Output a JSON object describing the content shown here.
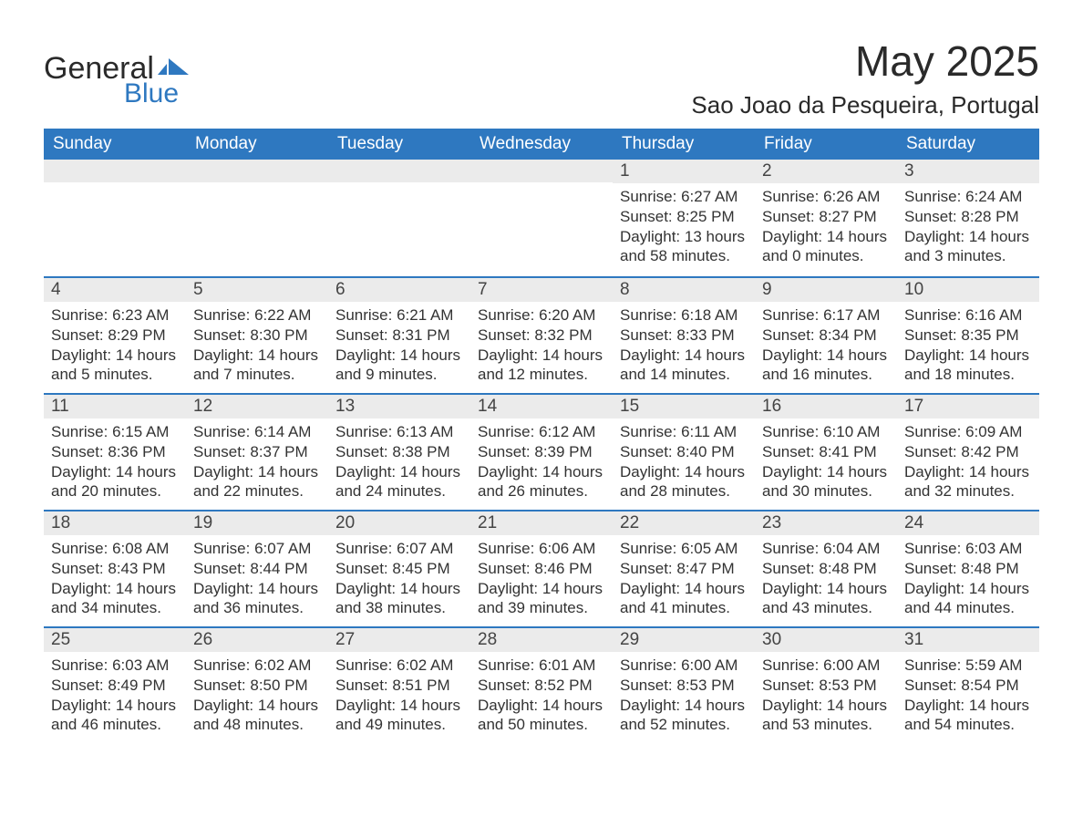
{
  "brand": {
    "word1": "General",
    "word2": "Blue",
    "accent_color": "#2e78c0"
  },
  "title": {
    "month_year": "May 2025",
    "location": "Sao Joao da Pesqueira, Portugal"
  },
  "colors": {
    "header_bg": "#2e78c0",
    "header_text": "#ffffff",
    "daynum_bg": "#ebebeb",
    "row_divider": "#2e78c0",
    "body_text": "#333333",
    "page_bg": "#ffffff"
  },
  "weekdays": [
    "Sunday",
    "Monday",
    "Tuesday",
    "Wednesday",
    "Thursday",
    "Friday",
    "Saturday"
  ],
  "weeks": [
    [
      null,
      null,
      null,
      null,
      {
        "n": "1",
        "sunrise": "Sunrise: 6:27 AM",
        "sunset": "Sunset: 8:25 PM",
        "day1": "Daylight: 13 hours",
        "day2": "and 58 minutes."
      },
      {
        "n": "2",
        "sunrise": "Sunrise: 6:26 AM",
        "sunset": "Sunset: 8:27 PM",
        "day1": "Daylight: 14 hours",
        "day2": "and 0 minutes."
      },
      {
        "n": "3",
        "sunrise": "Sunrise: 6:24 AM",
        "sunset": "Sunset: 8:28 PM",
        "day1": "Daylight: 14 hours",
        "day2": "and 3 minutes."
      }
    ],
    [
      {
        "n": "4",
        "sunrise": "Sunrise: 6:23 AM",
        "sunset": "Sunset: 8:29 PM",
        "day1": "Daylight: 14 hours",
        "day2": "and 5 minutes."
      },
      {
        "n": "5",
        "sunrise": "Sunrise: 6:22 AM",
        "sunset": "Sunset: 8:30 PM",
        "day1": "Daylight: 14 hours",
        "day2": "and 7 minutes."
      },
      {
        "n": "6",
        "sunrise": "Sunrise: 6:21 AM",
        "sunset": "Sunset: 8:31 PM",
        "day1": "Daylight: 14 hours",
        "day2": "and 9 minutes."
      },
      {
        "n": "7",
        "sunrise": "Sunrise: 6:20 AM",
        "sunset": "Sunset: 8:32 PM",
        "day1": "Daylight: 14 hours",
        "day2": "and 12 minutes."
      },
      {
        "n": "8",
        "sunrise": "Sunrise: 6:18 AM",
        "sunset": "Sunset: 8:33 PM",
        "day1": "Daylight: 14 hours",
        "day2": "and 14 minutes."
      },
      {
        "n": "9",
        "sunrise": "Sunrise: 6:17 AM",
        "sunset": "Sunset: 8:34 PM",
        "day1": "Daylight: 14 hours",
        "day2": "and 16 minutes."
      },
      {
        "n": "10",
        "sunrise": "Sunrise: 6:16 AM",
        "sunset": "Sunset: 8:35 PM",
        "day1": "Daylight: 14 hours",
        "day2": "and 18 minutes."
      }
    ],
    [
      {
        "n": "11",
        "sunrise": "Sunrise: 6:15 AM",
        "sunset": "Sunset: 8:36 PM",
        "day1": "Daylight: 14 hours",
        "day2": "and 20 minutes."
      },
      {
        "n": "12",
        "sunrise": "Sunrise: 6:14 AM",
        "sunset": "Sunset: 8:37 PM",
        "day1": "Daylight: 14 hours",
        "day2": "and 22 minutes."
      },
      {
        "n": "13",
        "sunrise": "Sunrise: 6:13 AM",
        "sunset": "Sunset: 8:38 PM",
        "day1": "Daylight: 14 hours",
        "day2": "and 24 minutes."
      },
      {
        "n": "14",
        "sunrise": "Sunrise: 6:12 AM",
        "sunset": "Sunset: 8:39 PM",
        "day1": "Daylight: 14 hours",
        "day2": "and 26 minutes."
      },
      {
        "n": "15",
        "sunrise": "Sunrise: 6:11 AM",
        "sunset": "Sunset: 8:40 PM",
        "day1": "Daylight: 14 hours",
        "day2": "and 28 minutes."
      },
      {
        "n": "16",
        "sunrise": "Sunrise: 6:10 AM",
        "sunset": "Sunset: 8:41 PM",
        "day1": "Daylight: 14 hours",
        "day2": "and 30 minutes."
      },
      {
        "n": "17",
        "sunrise": "Sunrise: 6:09 AM",
        "sunset": "Sunset: 8:42 PM",
        "day1": "Daylight: 14 hours",
        "day2": "and 32 minutes."
      }
    ],
    [
      {
        "n": "18",
        "sunrise": "Sunrise: 6:08 AM",
        "sunset": "Sunset: 8:43 PM",
        "day1": "Daylight: 14 hours",
        "day2": "and 34 minutes."
      },
      {
        "n": "19",
        "sunrise": "Sunrise: 6:07 AM",
        "sunset": "Sunset: 8:44 PM",
        "day1": "Daylight: 14 hours",
        "day2": "and 36 minutes."
      },
      {
        "n": "20",
        "sunrise": "Sunrise: 6:07 AM",
        "sunset": "Sunset: 8:45 PM",
        "day1": "Daylight: 14 hours",
        "day2": "and 38 minutes."
      },
      {
        "n": "21",
        "sunrise": "Sunrise: 6:06 AM",
        "sunset": "Sunset: 8:46 PM",
        "day1": "Daylight: 14 hours",
        "day2": "and 39 minutes."
      },
      {
        "n": "22",
        "sunrise": "Sunrise: 6:05 AM",
        "sunset": "Sunset: 8:47 PM",
        "day1": "Daylight: 14 hours",
        "day2": "and 41 minutes."
      },
      {
        "n": "23",
        "sunrise": "Sunrise: 6:04 AM",
        "sunset": "Sunset: 8:48 PM",
        "day1": "Daylight: 14 hours",
        "day2": "and 43 minutes."
      },
      {
        "n": "24",
        "sunrise": "Sunrise: 6:03 AM",
        "sunset": "Sunset: 8:48 PM",
        "day1": "Daylight: 14 hours",
        "day2": "and 44 minutes."
      }
    ],
    [
      {
        "n": "25",
        "sunrise": "Sunrise: 6:03 AM",
        "sunset": "Sunset: 8:49 PM",
        "day1": "Daylight: 14 hours",
        "day2": "and 46 minutes."
      },
      {
        "n": "26",
        "sunrise": "Sunrise: 6:02 AM",
        "sunset": "Sunset: 8:50 PM",
        "day1": "Daylight: 14 hours",
        "day2": "and 48 minutes."
      },
      {
        "n": "27",
        "sunrise": "Sunrise: 6:02 AM",
        "sunset": "Sunset: 8:51 PM",
        "day1": "Daylight: 14 hours",
        "day2": "and 49 minutes."
      },
      {
        "n": "28",
        "sunrise": "Sunrise: 6:01 AM",
        "sunset": "Sunset: 8:52 PM",
        "day1": "Daylight: 14 hours",
        "day2": "and 50 minutes."
      },
      {
        "n": "29",
        "sunrise": "Sunrise: 6:00 AM",
        "sunset": "Sunset: 8:53 PM",
        "day1": "Daylight: 14 hours",
        "day2": "and 52 minutes."
      },
      {
        "n": "30",
        "sunrise": "Sunrise: 6:00 AM",
        "sunset": "Sunset: 8:53 PM",
        "day1": "Daylight: 14 hours",
        "day2": "and 53 minutes."
      },
      {
        "n": "31",
        "sunrise": "Sunrise: 5:59 AM",
        "sunset": "Sunset: 8:54 PM",
        "day1": "Daylight: 14 hours",
        "day2": "and 54 minutes."
      }
    ]
  ]
}
